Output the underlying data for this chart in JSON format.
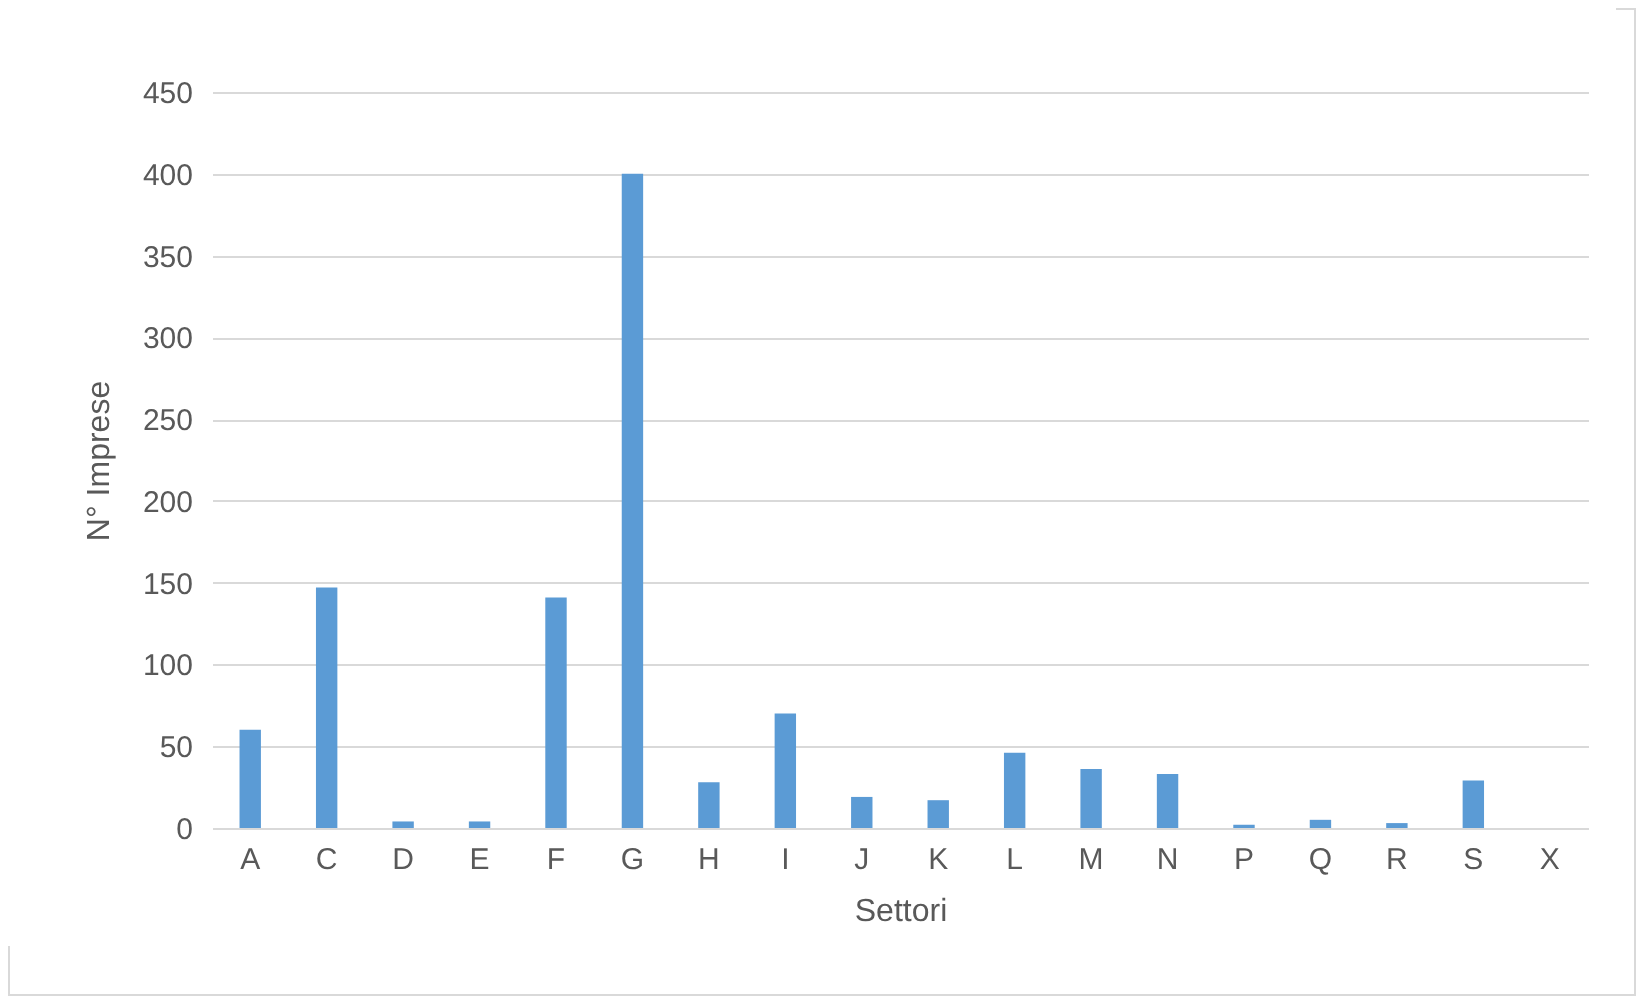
{
  "chart_data": {
    "type": "bar",
    "xlabel": "Settori",
    "ylabel": "N° Imprese",
    "categories": [
      "A",
      "C",
      "D",
      "E",
      "F",
      "G",
      "H",
      "I",
      "J",
      "K",
      "L",
      "M",
      "N",
      "P",
      "Q",
      "R",
      "S",
      "X"
    ],
    "values": [
      60,
      147,
      4,
      4,
      141,
      400,
      28,
      70,
      19,
      17,
      46,
      36,
      33,
      2,
      5,
      3,
      29,
      0
    ],
    "color": "#5b9bd5",
    "ylim": [
      0,
      450
    ],
    "yticks": [
      0,
      50,
      100,
      150,
      200,
      250,
      300,
      350,
      400,
      450
    ],
    "grid": "y"
  }
}
